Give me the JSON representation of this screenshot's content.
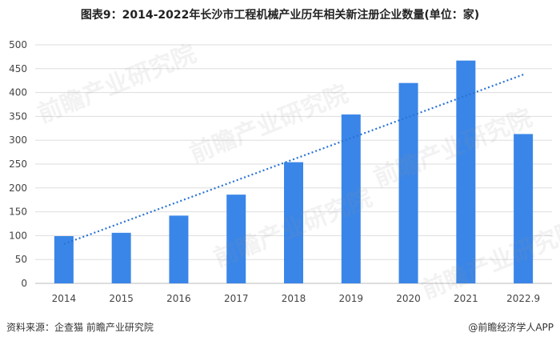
{
  "title": "图表9：2014-2022年长沙市工程机械产业历年相关新注册企业数量(单位：家)",
  "source": "资料来源：企查猫 前瞻产业研究院",
  "brand": "@前瞻经济学人APP",
  "watermark": "前瞻产业研究院",
  "colors": {
    "bar": "#3a86e8",
    "trend": "#2a72d4",
    "grid": "#dddddd",
    "axis_text": "#444444"
  },
  "chart_data": {
    "type": "bar",
    "categories": [
      "2014",
      "2015",
      "2016",
      "2017",
      "2018",
      "2019",
      "2020",
      "2021",
      "2022.9"
    ],
    "values": [
      99,
      106,
      142,
      186,
      254,
      354,
      420,
      467,
      313
    ],
    "ylim": [
      0,
      500
    ],
    "yticks": [
      0,
      50,
      100,
      150,
      200,
      250,
      300,
      350,
      400,
      450,
      500
    ],
    "trendline": {
      "type": "linear",
      "style": "dotted"
    },
    "grid": true,
    "xlabel": "",
    "ylabel": ""
  }
}
